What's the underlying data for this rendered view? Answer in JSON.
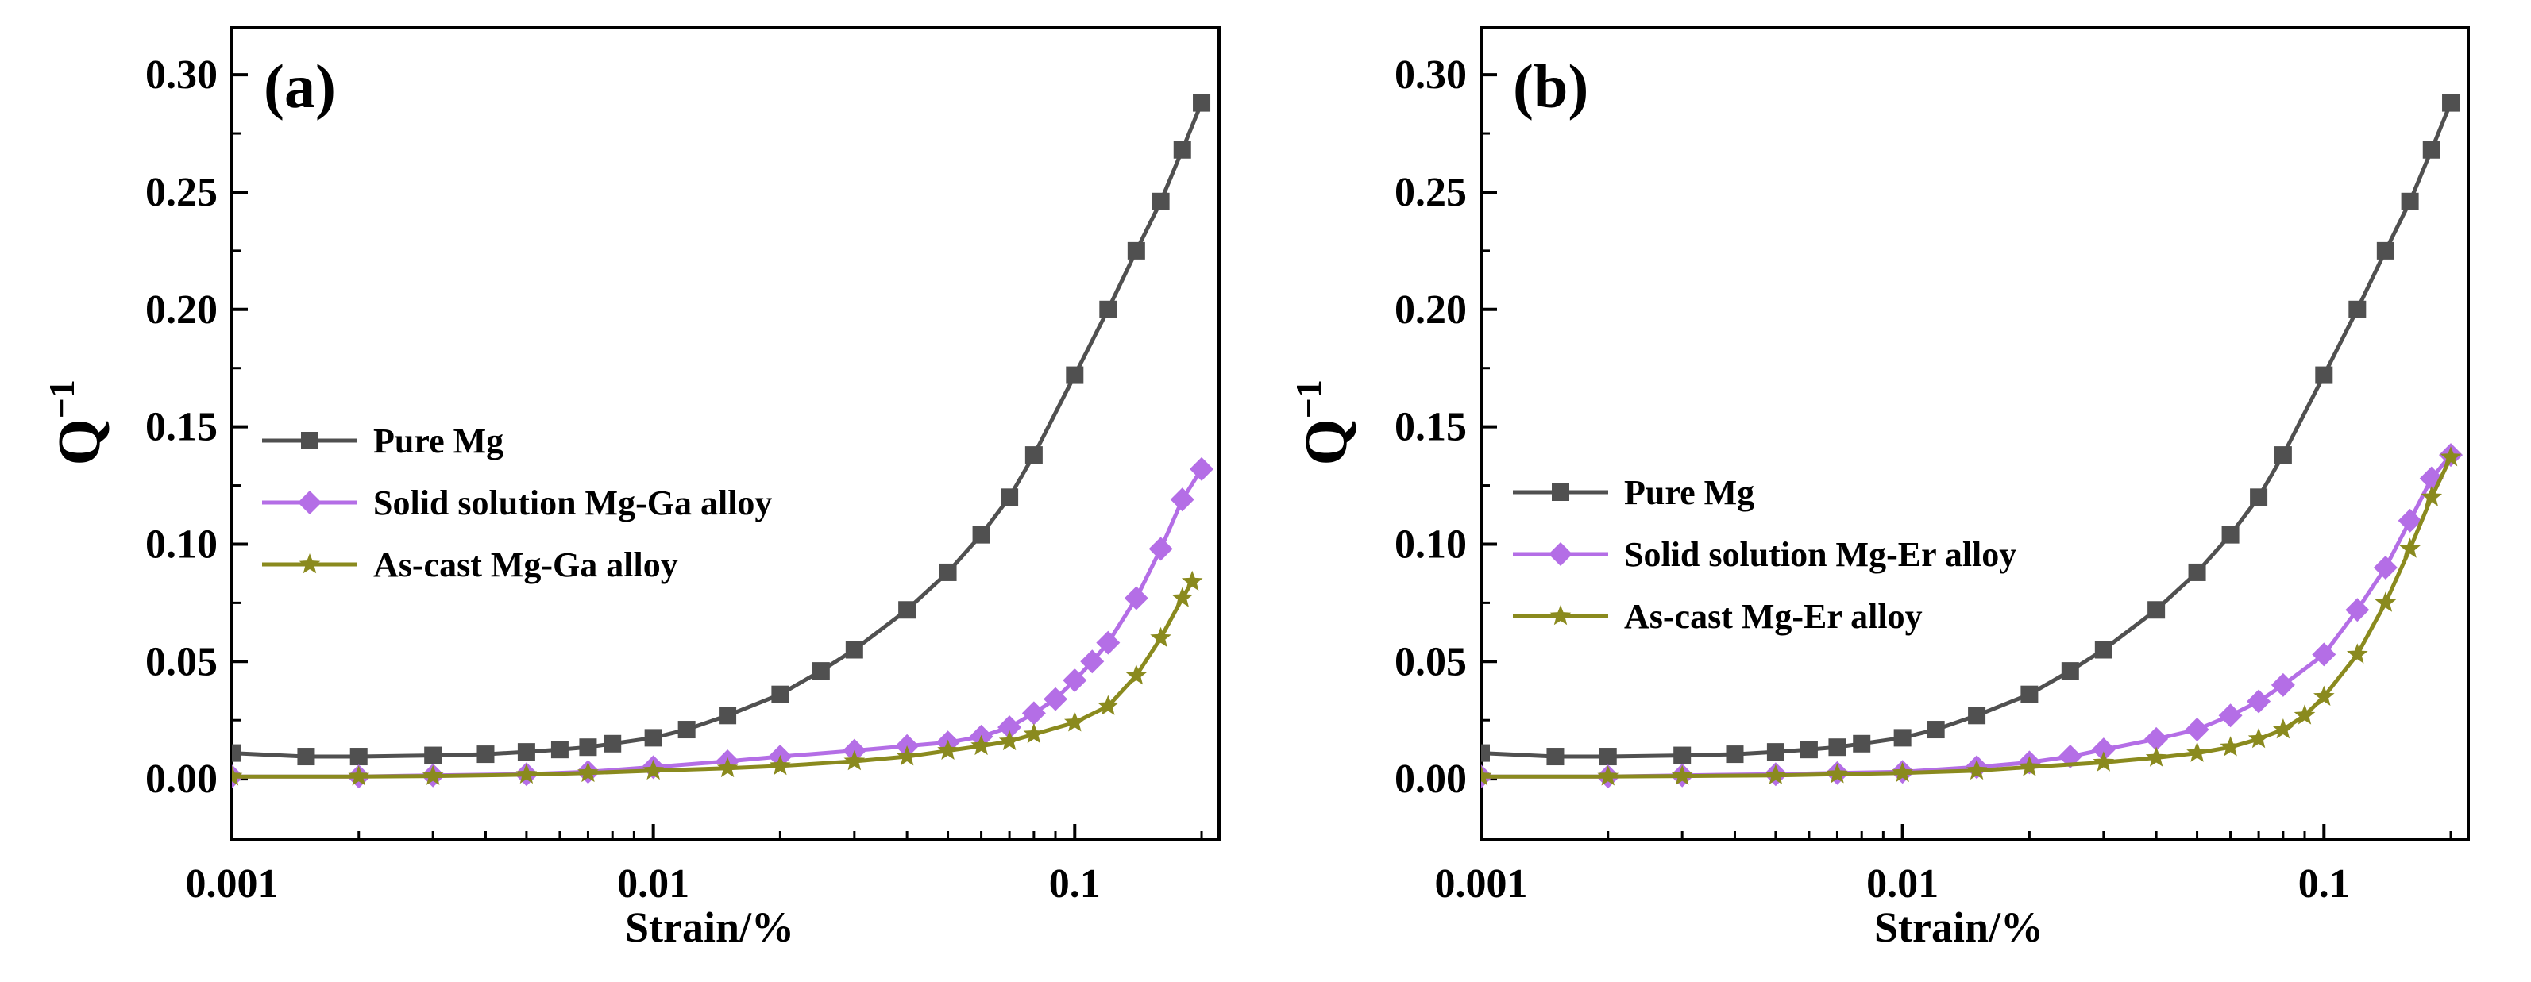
{
  "chart_data": [
    {
      "type": "line",
      "panel_label": "(a)",
      "xlabel": "Strain/%",
      "ylabel": "Q",
      "ylabel_superscript": "−1",
      "x_scale": "log",
      "xlim": [
        0.001,
        0.22
      ],
      "ylim": [
        -0.026,
        0.32
      ],
      "x_ticks": [
        0.001,
        0.01,
        0.1
      ],
      "x_tick_labels": [
        "0.001",
        "0.01",
        "0.1"
      ],
      "y_ticks": [
        0.0,
        0.05,
        0.1,
        0.15,
        0.2,
        0.25,
        0.3
      ],
      "y_tick_labels": [
        "0.00",
        "0.05",
        "0.10",
        "0.15",
        "0.20",
        "0.25",
        "0.30"
      ],
      "legend_position": "center-left",
      "series": [
        {
          "name": "Pure Mg",
          "color": "#505050",
          "marker": "square",
          "points": [
            [
              0.001,
              0.011
            ],
            [
              0.0015,
              0.0095
            ],
            [
              0.002,
              0.0095
            ],
            [
              0.003,
              0.01
            ],
            [
              0.004,
              0.0105
            ],
            [
              0.005,
              0.0115
            ],
            [
              0.006,
              0.0125
            ],
            [
              0.007,
              0.0135
            ],
            [
              0.008,
              0.015
            ],
            [
              0.01,
              0.0175
            ],
            [
              0.012,
              0.021
            ],
            [
              0.015,
              0.027
            ],
            [
              0.02,
              0.036
            ],
            [
              0.025,
              0.046
            ],
            [
              0.03,
              0.055
            ],
            [
              0.04,
              0.072
            ],
            [
              0.05,
              0.088
            ],
            [
              0.06,
              0.104
            ],
            [
              0.07,
              0.12
            ],
            [
              0.08,
              0.138
            ],
            [
              0.1,
              0.172
            ],
            [
              0.12,
              0.2
            ],
            [
              0.14,
              0.225
            ],
            [
              0.16,
              0.246
            ],
            [
              0.18,
              0.268
            ],
            [
              0.2,
              0.288
            ]
          ]
        },
        {
          "name": "Solid solution Mg-Ga alloy",
          "color": "#b46ee6",
          "marker": "diamond",
          "points": [
            [
              0.001,
              0.001
            ],
            [
              0.002,
              0.001
            ],
            [
              0.003,
              0.0015
            ],
            [
              0.005,
              0.002
            ],
            [
              0.007,
              0.003
            ],
            [
              0.01,
              0.005
            ],
            [
              0.015,
              0.0075
            ],
            [
              0.02,
              0.0095
            ],
            [
              0.03,
              0.012
            ],
            [
              0.04,
              0.014
            ],
            [
              0.05,
              0.0155
            ],
            [
              0.06,
              0.018
            ],
            [
              0.07,
              0.022
            ],
            [
              0.08,
              0.028
            ],
            [
              0.09,
              0.034
            ],
            [
              0.1,
              0.042
            ],
            [
              0.11,
              0.05
            ],
            [
              0.12,
              0.058
            ],
            [
              0.14,
              0.077
            ],
            [
              0.16,
              0.098
            ],
            [
              0.18,
              0.119
            ],
            [
              0.2,
              0.132
            ]
          ]
        },
        {
          "name": "As-cast Mg-Ga alloy",
          "color": "#8a8a1e",
          "marker": "star",
          "points": [
            [
              0.001,
              0.001
            ],
            [
              0.002,
              0.001
            ],
            [
              0.003,
              0.0012
            ],
            [
              0.005,
              0.0018
            ],
            [
              0.007,
              0.0025
            ],
            [
              0.01,
              0.0035
            ],
            [
              0.015,
              0.0045
            ],
            [
              0.02,
              0.0055
            ],
            [
              0.03,
              0.0075
            ],
            [
              0.04,
              0.0095
            ],
            [
              0.05,
              0.012
            ],
            [
              0.06,
              0.014
            ],
            [
              0.07,
              0.016
            ],
            [
              0.08,
              0.019
            ],
            [
              0.1,
              0.024
            ],
            [
              0.12,
              0.031
            ],
            [
              0.14,
              0.044
            ],
            [
              0.16,
              0.06
            ],
            [
              0.18,
              0.077
            ],
            [
              0.19,
              0.084
            ]
          ]
        }
      ]
    },
    {
      "type": "line",
      "panel_label": "(b)",
      "xlabel": "Strain/%",
      "ylabel": "Q",
      "ylabel_superscript": "−1",
      "x_scale": "log",
      "xlim": [
        0.001,
        0.22
      ],
      "ylim": [
        -0.026,
        0.32
      ],
      "x_ticks": [
        0.001,
        0.01,
        0.1
      ],
      "x_tick_labels": [
        "0.001",
        "0.01",
        "0.1"
      ],
      "y_ticks": [
        0.0,
        0.05,
        0.1,
        0.15,
        0.2,
        0.25,
        0.3
      ],
      "y_tick_labels": [
        "0.00",
        "0.05",
        "0.10",
        "0.15",
        "0.20",
        "0.25",
        "0.30"
      ],
      "legend_position": "center-left",
      "series": [
        {
          "name": "Pure Mg",
          "color": "#505050",
          "marker": "square",
          "points": [
            [
              0.001,
              0.011
            ],
            [
              0.0015,
              0.0095
            ],
            [
              0.002,
              0.0095
            ],
            [
              0.003,
              0.01
            ],
            [
              0.004,
              0.0105
            ],
            [
              0.005,
              0.0115
            ],
            [
              0.006,
              0.0125
            ],
            [
              0.007,
              0.0135
            ],
            [
              0.008,
              0.015
            ],
            [
              0.01,
              0.0175
            ],
            [
              0.012,
              0.021
            ],
            [
              0.015,
              0.027
            ],
            [
              0.02,
              0.036
            ],
            [
              0.025,
              0.046
            ],
            [
              0.03,
              0.055
            ],
            [
              0.04,
              0.072
            ],
            [
              0.05,
              0.088
            ],
            [
              0.06,
              0.104
            ],
            [
              0.07,
              0.12
            ],
            [
              0.08,
              0.138
            ],
            [
              0.1,
              0.172
            ],
            [
              0.12,
              0.2
            ],
            [
              0.14,
              0.225
            ],
            [
              0.16,
              0.246
            ],
            [
              0.18,
              0.268
            ],
            [
              0.2,
              0.288
            ]
          ]
        },
        {
          "name": "Solid solution Mg-Er alloy",
          "color": "#b46ee6",
          "marker": "diamond",
          "points": [
            [
              0.001,
              0.001
            ],
            [
              0.002,
              0.001
            ],
            [
              0.003,
              0.0015
            ],
            [
              0.005,
              0.002
            ],
            [
              0.007,
              0.0025
            ],
            [
              0.01,
              0.003
            ],
            [
              0.015,
              0.005
            ],
            [
              0.02,
              0.007
            ],
            [
              0.025,
              0.0095
            ],
            [
              0.03,
              0.0125
            ],
            [
              0.04,
              0.017
            ],
            [
              0.05,
              0.021
            ],
            [
              0.06,
              0.027
            ],
            [
              0.07,
              0.033
            ],
            [
              0.08,
              0.04
            ],
            [
              0.1,
              0.053
            ],
            [
              0.12,
              0.072
            ],
            [
              0.14,
              0.09
            ],
            [
              0.16,
              0.11
            ],
            [
              0.18,
              0.128
            ],
            [
              0.2,
              0.138
            ]
          ]
        },
        {
          "name": "As-cast Mg-Er alloy",
          "color": "#8a8a1e",
          "marker": "star",
          "points": [
            [
              0.001,
              0.001
            ],
            [
              0.002,
              0.001
            ],
            [
              0.003,
              0.0012
            ],
            [
              0.005,
              0.0015
            ],
            [
              0.007,
              0.002
            ],
            [
              0.01,
              0.0025
            ],
            [
              0.015,
              0.0035
            ],
            [
              0.02,
              0.005
            ],
            [
              0.03,
              0.007
            ],
            [
              0.04,
              0.009
            ],
            [
              0.05,
              0.011
            ],
            [
              0.06,
              0.0135
            ],
            [
              0.07,
              0.017
            ],
            [
              0.08,
              0.021
            ],
            [
              0.09,
              0.027
            ],
            [
              0.1,
              0.035
            ],
            [
              0.12,
              0.053
            ],
            [
              0.14,
              0.075
            ],
            [
              0.16,
              0.098
            ],
            [
              0.18,
              0.12
            ],
            [
              0.2,
              0.137
            ]
          ]
        }
      ]
    }
  ]
}
